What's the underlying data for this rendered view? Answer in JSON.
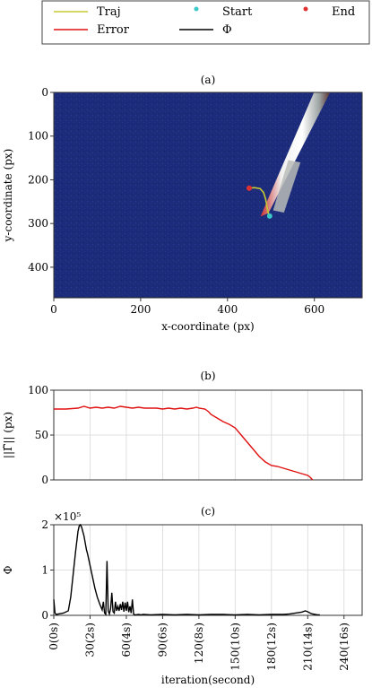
{
  "legend": {
    "items": [
      {
        "label": "Traj",
        "color": "#c8c832",
        "kind": "line"
      },
      {
        "label": "Start",
        "color": "#3cc8c8",
        "kind": "dot"
      },
      {
        "label": "End",
        "color": "#e03030",
        "kind": "dot"
      },
      {
        "label": "Error",
        "color": "#e01010",
        "kind": "line"
      },
      {
        "label": "Φ",
        "color": "#000000",
        "kind": "line"
      }
    ]
  },
  "colors": {
    "bg_blue": "#1c2c7a",
    "needle": "#e8e8e8",
    "grid": "#d8d8d8"
  },
  "chart_data": [
    {
      "type": "scatter",
      "panel_label": "(a)",
      "xlabel": "x-coordinate (px)",
      "ylabel": "y-coordinate (px)",
      "xlim": [
        0,
        710
      ],
      "ylim": [
        470,
        0
      ],
      "x_ticks": [
        0,
        200,
        400,
        600
      ],
      "y_ticks": [
        0,
        100,
        200,
        300,
        400
      ],
      "image": "microscope frame with needle",
      "series": [
        {
          "name": "Traj",
          "points": [
            [
              497,
              283
            ],
            [
              494,
              276
            ],
            [
              491,
              262
            ],
            [
              488,
              245
            ],
            [
              483,
              229
            ],
            [
              475,
              220
            ],
            [
              462,
              218
            ],
            [
              450,
              219
            ]
          ]
        },
        {
          "name": "Start",
          "points": [
            [
              497,
              283
            ]
          ]
        },
        {
          "name": "End",
          "points": [
            [
              450,
              219
            ]
          ]
        }
      ]
    },
    {
      "type": "line",
      "panel_label": "(b)",
      "xlabel": "",
      "ylabel": "||Γ̃|| (px)",
      "xlim": [
        0,
        255
      ],
      "ylim": [
        0,
        100
      ],
      "y_ticks": [
        0,
        50,
        100
      ],
      "grid": true,
      "series": [
        {
          "name": "Error",
          "x": [
            0,
            10,
            20,
            25,
            30,
            35,
            40,
            45,
            50,
            55,
            60,
            65,
            70,
            75,
            80,
            85,
            90,
            95,
            100,
            105,
            110,
            115,
            118,
            120,
            125,
            128,
            130,
            135,
            140,
            145,
            150,
            155,
            160,
            165,
            170,
            175,
            180,
            185,
            190,
            195,
            200,
            205,
            210,
            212,
            214
          ],
          "y": [
            79,
            79,
            80,
            82,
            80,
            81,
            80,
            81,
            80,
            82,
            81,
            80,
            81,
            80,
            80,
            80,
            79,
            80,
            79,
            80,
            79,
            80,
            81,
            80,
            79,
            76,
            73,
            69,
            65,
            62,
            58,
            50,
            42,
            34,
            26,
            20,
            16,
            15,
            13,
            11,
            9,
            7,
            5,
            3,
            0
          ]
        }
      ]
    },
    {
      "type": "line",
      "panel_label": "(c)",
      "xlabel": "iteration(second)",
      "ylabel": "Φ",
      "multiplier": "×10⁵",
      "xlim": [
        0,
        255
      ],
      "ylim": [
        0,
        2
      ],
      "y_ticks": [
        0,
        1,
        2
      ],
      "x_ticks": [
        0,
        30,
        60,
        90,
        120,
        150,
        180,
        210,
        240
      ],
      "x_tick_labels": [
        "0(0s)",
        "30(2s)",
        "60(4s)",
        "90(6s)",
        "120(8s)",
        "150(10s)",
        "180(12s)",
        "210(14s)",
        "240(16s)"
      ],
      "grid": true,
      "series": [
        {
          "name": "Φ",
          "x": [
            0,
            1,
            2,
            4,
            8,
            12,
            14,
            16,
            18,
            20,
            21,
            22,
            23,
            24,
            25,
            26,
            27,
            28,
            30,
            32,
            34,
            36,
            38,
            40,
            41,
            42,
            43,
            44,
            45,
            46,
            47,
            48,
            49,
            50,
            51,
            52,
            53,
            54,
            55,
            56,
            57,
            58,
            59,
            60,
            61,
            62,
            63,
            64,
            65,
            66,
            67,
            68,
            70,
            72,
            74,
            80,
            90,
            100,
            110,
            120,
            130,
            140,
            150,
            160,
            170,
            180,
            190,
            195,
            200,
            205,
            208,
            210,
            212,
            214,
            216,
            218,
            220
          ],
          "y": [
            0.35,
            0.05,
            0.02,
            0.03,
            0.05,
            0.1,
            0.4,
            0.9,
            1.4,
            1.85,
            1.97,
            2.0,
            1.95,
            1.85,
            1.75,
            1.6,
            1.45,
            1.35,
            1.1,
            0.85,
            0.6,
            0.4,
            0.25,
            0.12,
            0.3,
            0.05,
            0.02,
            1.2,
            0.1,
            0.03,
            0.15,
            0.5,
            0.08,
            0.05,
            0.3,
            0.1,
            0.2,
            0.1,
            0.25,
            0.12,
            0.3,
            0.08,
            0.28,
            0.1,
            0.3,
            0.07,
            0.2,
            0.05,
            0.35,
            0.03,
            0.01,
            0.01,
            0.02,
            0.01,
            0.02,
            0.01,
            0.02,
            0.01,
            0.02,
            0.01,
            0.02,
            0.02,
            0.01,
            0.02,
            0.01,
            0.02,
            0.02,
            0.03,
            0.05,
            0.07,
            0.1,
            0.08,
            0.05,
            0.03,
            0.02,
            0.01,
            0.01
          ]
        }
      ]
    }
  ]
}
